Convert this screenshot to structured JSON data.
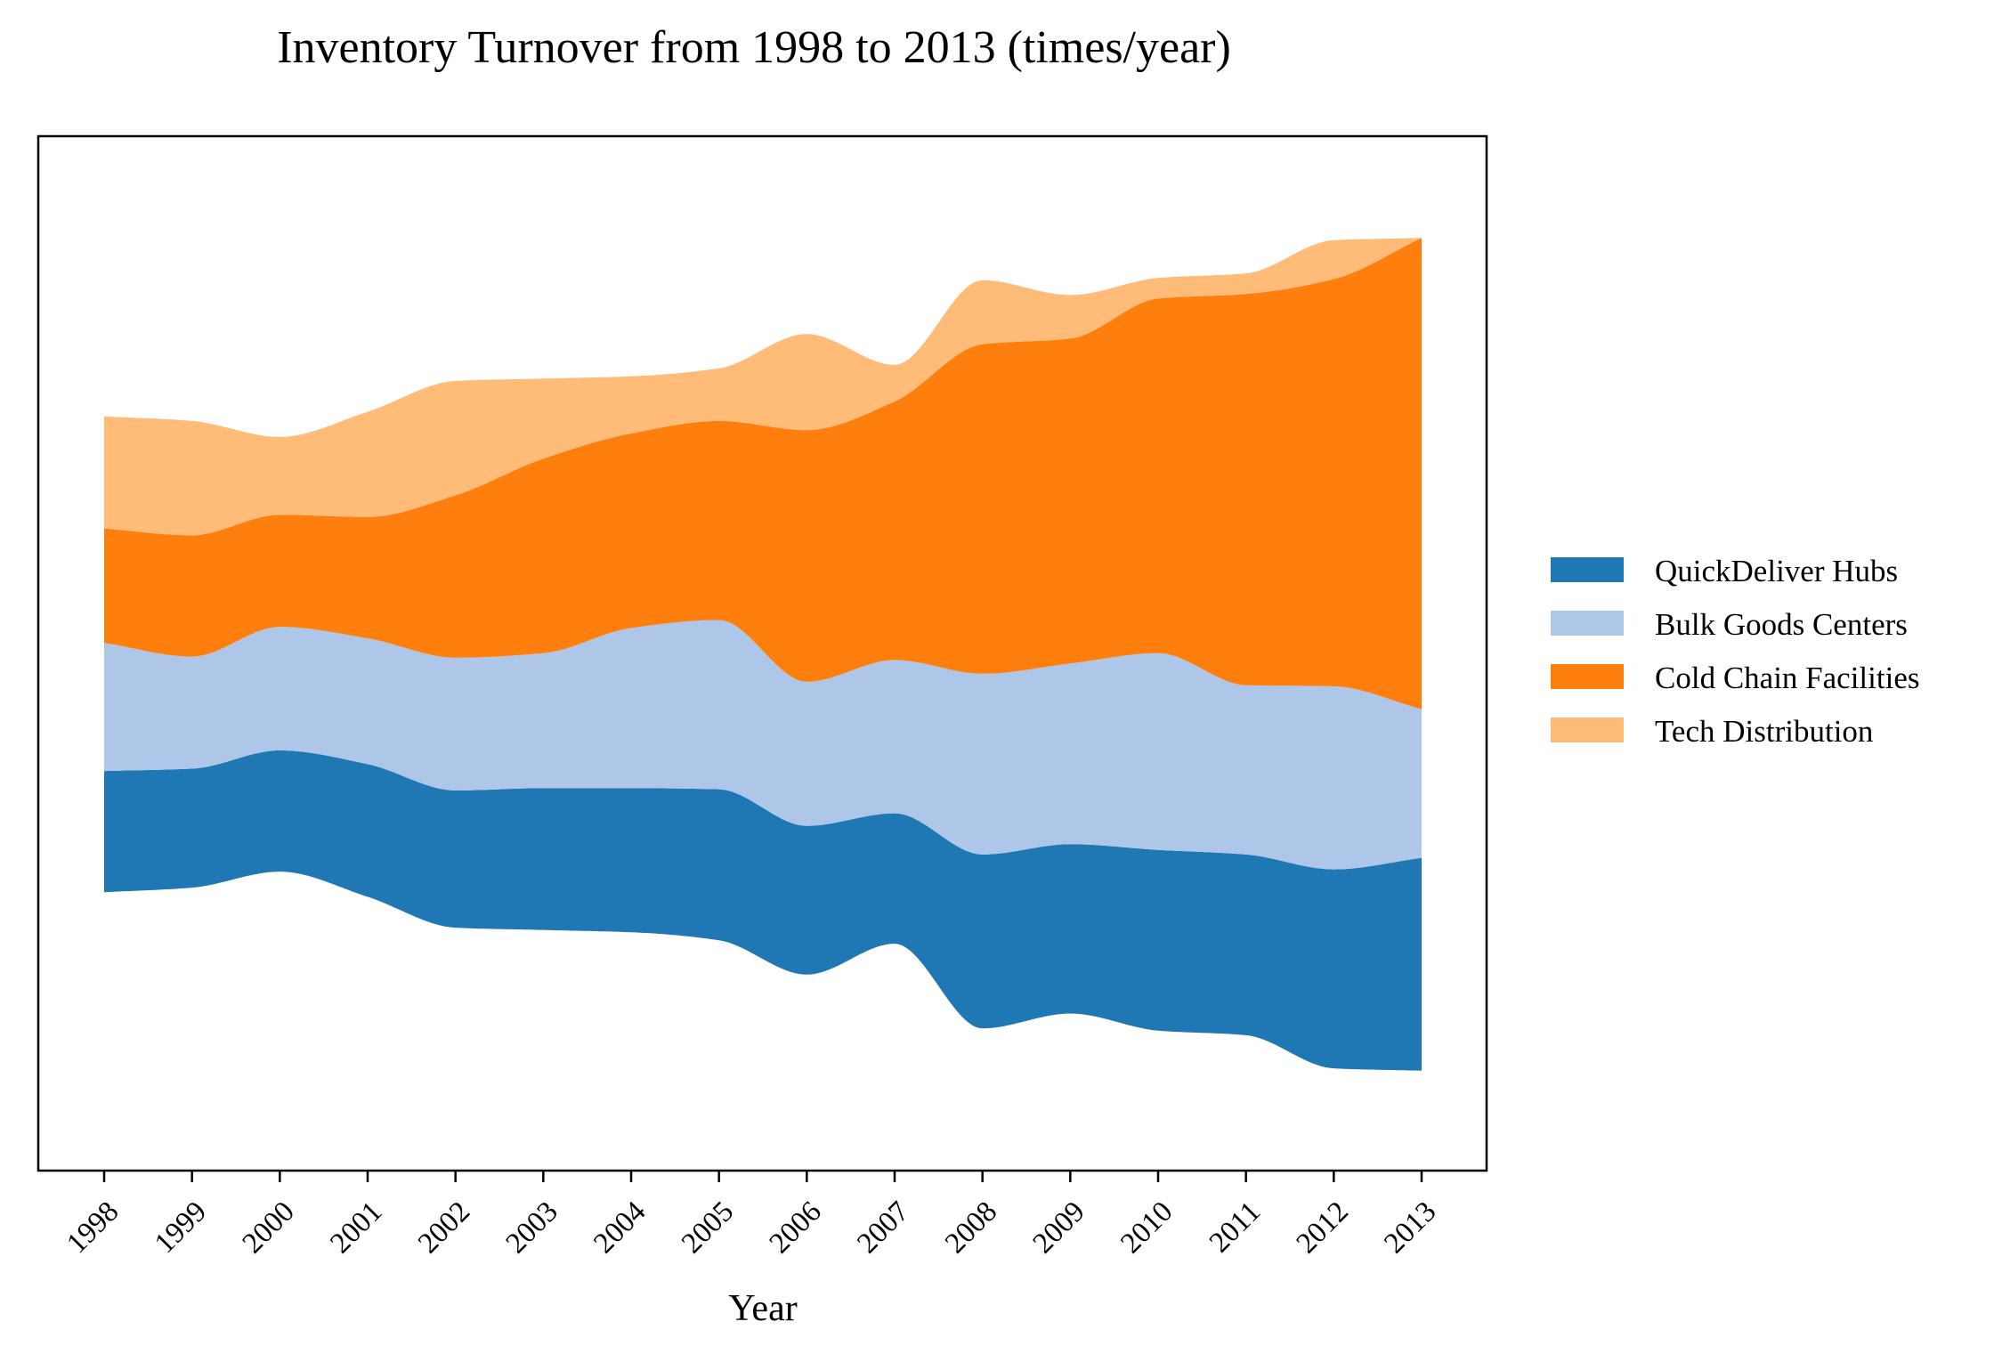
{
  "chart_data": {
    "type": "area",
    "subtype": "streamgraph",
    "title": "Inventory Turnover from 1998 to 2013 (times/year)",
    "xlabel": "Year",
    "ylabel": "",
    "x": [
      1998,
      1999,
      2000,
      2001,
      2002,
      2003,
      2004,
      2005,
      2006,
      2007,
      2008,
      2009,
      2010,
      2011,
      2012,
      2013
    ],
    "tick_labels": [
      "1998",
      "1999",
      "2000",
      "2001",
      "2002",
      "2003",
      "2004",
      "2005",
      "2006",
      "2007",
      "2008",
      "2009",
      "2010",
      "2011",
      "2012",
      "2013"
    ],
    "series": [
      {
        "name": "QuickDeliver Hubs",
        "color": "#1f77b4",
        "values": [
          5.3,
          5.2,
          5.3,
          5.8,
          6.0,
          6.2,
          6.3,
          6.6,
          6.5,
          5.7,
          7.6,
          7.4,
          7.9,
          7.9,
          8.7,
          9.3
        ]
      },
      {
        "name": "Bulk Goods Centers",
        "color": "#aec7e8",
        "values": [
          5.6,
          4.9,
          5.4,
          5.5,
          5.8,
          5.9,
          7.0,
          7.4,
          6.3,
          6.7,
          7.9,
          7.9,
          8.6,
          7.4,
          8.0,
          6.5
        ]
      },
      {
        "name": "Cold Chain Facilities",
        "color": "#ff7f0e",
        "values": [
          5.0,
          5.3,
          4.9,
          5.3,
          7.1,
          8.5,
          8.5,
          8.7,
          11.0,
          11.3,
          14.4,
          14.2,
          15.5,
          17.1,
          17.8,
          20.6
        ]
      },
      {
        "name": "Tech Distribution",
        "color": "#ffbb78",
        "values": [
          4.9,
          5.0,
          3.4,
          4.6,
          5.0,
          3.5,
          2.5,
          2.3,
          4.2,
          1.6,
          2.8,
          1.9,
          0.9,
          0.9,
          1.7,
          0.0
        ]
      }
    ],
    "baseline": "symmetric",
    "grid": false,
    "legend": "right"
  }
}
